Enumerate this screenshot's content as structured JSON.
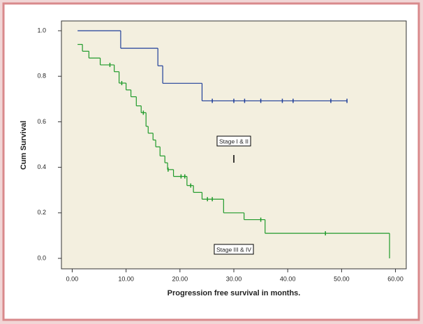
{
  "chart_data": {
    "type": "step",
    "x_label": "Progression free survival in months.",
    "y_label": "Cum Survival",
    "xlim": [
      -2,
      62
    ],
    "ylim": [
      -0.046,
      1.043
    ],
    "xticks": [
      {
        "value": 0,
        "label": "0.00"
      },
      {
        "value": 10,
        "label": "10.00"
      },
      {
        "value": 20,
        "label": "20.00"
      },
      {
        "value": 30,
        "label": "30.00"
      },
      {
        "value": 40,
        "label": "40.00"
      },
      {
        "value": 50,
        "label": "50.00"
      },
      {
        "value": 60,
        "label": "60.00"
      }
    ],
    "yticks": [
      {
        "value": 0,
        "label": "0.0"
      },
      0.2,
      0.4,
      0.6,
      0.8,
      {
        "value": 1,
        "label": "1.0"
      }
    ],
    "series": [
      {
        "name": "Stage I & II",
        "color": "#1f3f9a",
        "x": [
          1,
          9,
          15.9,
          16.8,
          24.1,
          51
        ],
        "values": [
          1,
          0.923,
          0.846,
          0.769,
          0.692,
          0.692
        ],
        "censored_x": [
          26,
          30,
          32,
          35,
          39,
          41,
          48,
          51
        ],
        "censored_values": [
          0.692,
          0.692,
          0.692,
          0.692,
          0.692,
          0.692,
          0.692,
          0.692
        ]
      },
      {
        "name": "Stage III & IV",
        "color": "#1f9a2a",
        "x": [
          1,
          1.9,
          3.1,
          5.2,
          7.8,
          8.7,
          10,
          10.9,
          11.9,
          12.8,
          13.7,
          14.1,
          15,
          15.5,
          16.3,
          17.2,
          17.7,
          18.8,
          21.3,
          22.5,
          24.1,
          28.1,
          31.9,
          35.8,
          58.9
        ],
        "values": [
          0.94,
          0.91,
          0.88,
          0.85,
          0.82,
          0.77,
          0.74,
          0.71,
          0.67,
          0.64,
          0.58,
          0.55,
          0.52,
          0.49,
          0.45,
          0.42,
          0.39,
          0.36,
          0.32,
          0.29,
          0.26,
          0.2,
          0.17,
          0.11,
          0
        ],
        "censored_x": [
          7,
          9.2,
          13.2,
          17.8,
          20.2,
          20.9,
          22,
          25.1,
          26,
          35,
          47
        ],
        "censored_values": [
          0.85,
          0.77,
          0.64,
          0.39,
          0.36,
          0.36,
          0.32,
          0.26,
          0.26,
          0.17,
          0.11
        ]
      }
    ]
  }
}
